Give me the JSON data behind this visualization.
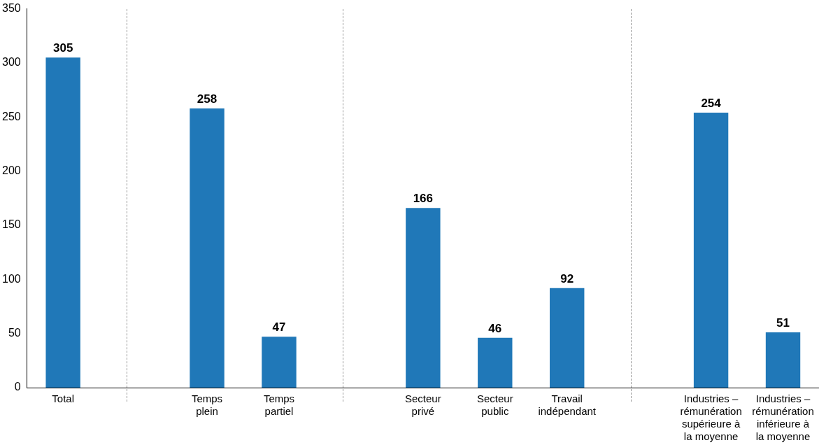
{
  "chart_data": {
    "type": "bar",
    "categories": [
      "Total",
      null,
      "Temps plein",
      "Temps partiel",
      null,
      "Secteur privé",
      "Secteur public",
      "Travail indépendant",
      null,
      "Industries – rémunération supérieure à la moyenne",
      "Industries – rémunération inférieure à la moyenne"
    ],
    "values": [
      305,
      null,
      258,
      47,
      null,
      166,
      46,
      92,
      null,
      254,
      51
    ],
    "color": "#2078b8",
    "ylim": [
      0,
      350
    ],
    "yticks": [
      0,
      50,
      100,
      150,
      200,
      250,
      300,
      350
    ],
    "grid": false,
    "data_labels": true
  }
}
